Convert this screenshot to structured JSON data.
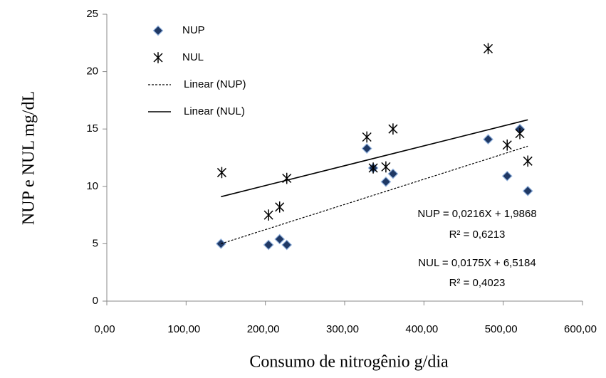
{
  "chart_data": {
    "type": "scatter",
    "xlabel": "Consumo de  nitrogênio g/dia",
    "ylabel": "NUP e NUL mg/dL",
    "xlim": [
      0,
      600
    ],
    "xticks": [
      {
        "value": 0,
        "label": "0,00"
      },
      {
        "value": 100,
        "label": "100,00"
      },
      {
        "value": 200,
        "label": "200,00"
      },
      {
        "value": 300,
        "label": "300,00"
      },
      {
        "value": 400,
        "label": "400,00"
      },
      {
        "value": 500,
        "label": "500,00"
      },
      {
        "value": 600,
        "label": "600,00"
      }
    ],
    "ylim": [
      0,
      25
    ],
    "yticks": [
      0,
      5,
      10,
      15,
      20,
      25
    ],
    "grid": false,
    "legend": "top-left",
    "series": [
      {
        "name": "NUP",
        "marker": "diamond",
        "color": "#1f3864",
        "x": [
          144,
          204,
          218,
          227,
          328,
          336,
          352,
          361,
          481,
          505,
          521,
          531
        ],
        "values": [
          5.0,
          4.9,
          5.4,
          4.9,
          13.3,
          11.6,
          10.4,
          11.1,
          14.1,
          10.9,
          15.0,
          9.6
        ]
      },
      {
        "name": "NUL",
        "marker": "star",
        "color": "#000000",
        "x": [
          145,
          204,
          218,
          227,
          328,
          336,
          352,
          361,
          481,
          505,
          521,
          531
        ],
        "values": [
          11.2,
          7.5,
          8.2,
          10.7,
          14.3,
          11.6,
          11.7,
          15.0,
          22.0,
          13.6,
          14.6,
          12.2
        ]
      },
      {
        "name": "Linear (NUP)",
        "marker": "dashed-line",
        "color": "#000000",
        "x": [
          144,
          531
        ],
        "values": [
          5.0,
          13.5
        ]
      },
      {
        "name": "Linear (NUL)",
        "marker": "solid-line",
        "color": "#000000",
        "x": [
          144,
          531
        ],
        "values": [
          9.1,
          15.8
        ]
      }
    ],
    "annotations": [
      "NUP = 0,0216X + 1,9868",
      "R² = 0,6213",
      "NUL = 0,0175X + 6,5184",
      "R² = 0,4023"
    ]
  }
}
